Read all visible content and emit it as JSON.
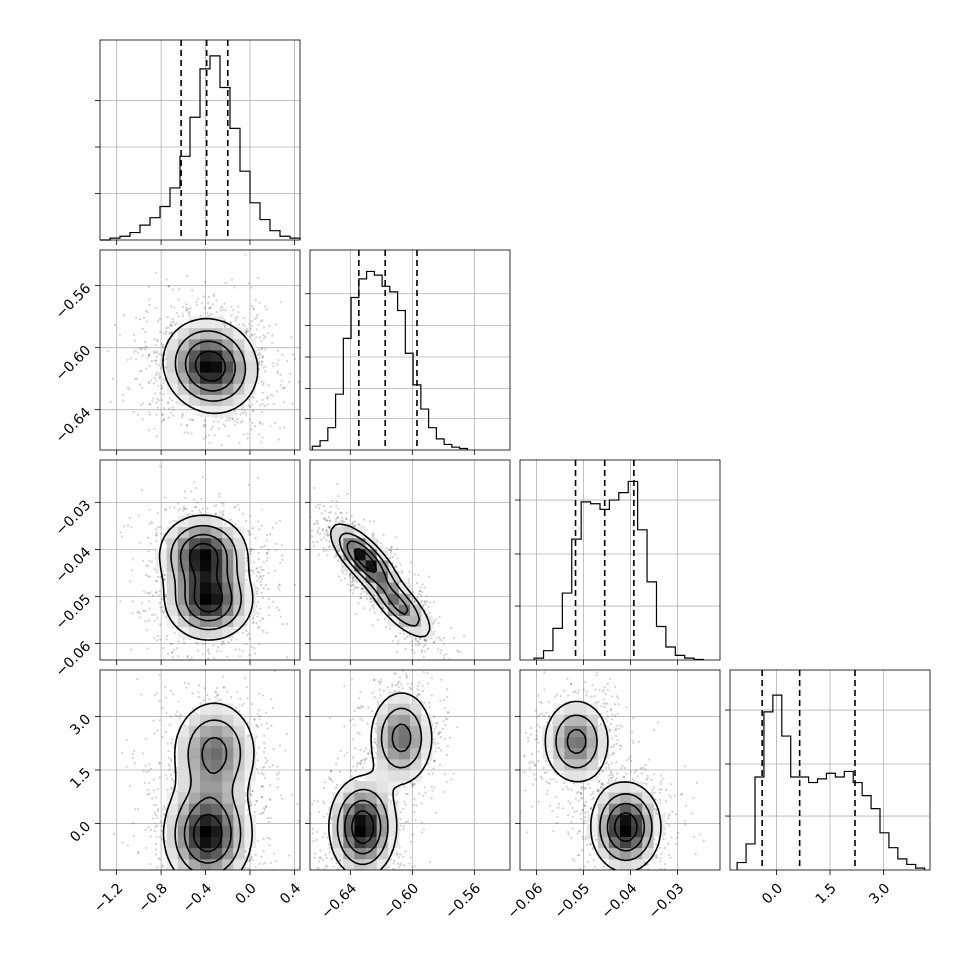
{
  "chart_data": {
    "type": "corner",
    "variables": [
      {
        "id": "p0",
        "range": [
          -1.35,
          0.45
        ],
        "xticks": [
          -1.2,
          -0.8,
          -0.4,
          0.0,
          0.4
        ],
        "xtick_labels": [
          "−1.2",
          "−0.8",
          "−0.4",
          "0.0",
          "0.4"
        ],
        "yticks": [],
        "ytick_labels": []
      },
      {
        "id": "p1",
        "range": [
          -0.666,
          -0.537
        ],
        "xticks": [
          -0.64,
          -0.6,
          -0.56
        ],
        "xtick_labels": [
          "−0.64",
          "−0.60",
          "−0.56"
        ],
        "yticks": [
          -0.56,
          -0.6,
          -0.64
        ],
        "ytick_labels": [
          "−0.56",
          "−0.60",
          "−0.64"
        ]
      },
      {
        "id": "p2",
        "range": [
          -0.0635,
          -0.021
        ],
        "xticks": [
          -0.06,
          -0.05,
          -0.04,
          -0.03
        ],
        "xtick_labels": [
          "−0.06",
          "−0.05",
          "−0.04",
          "−0.03"
        ],
        "yticks": [
          -0.03,
          -0.04,
          -0.05,
          -0.06
        ],
        "ytick_labels": [
          "−0.03",
          "−0.04",
          "−0.05",
          "−0.06"
        ]
      },
      {
        "id": "p3",
        "range": [
          -1.3,
          4.3
        ],
        "xticks": [
          0.0,
          1.5,
          3.0
        ],
        "xtick_labels": [
          "0.0",
          "1.5",
          "3.0"
        ],
        "yticks": [
          3.0,
          1.5,
          0.0
        ],
        "ytick_labels": [
          "3.0",
          "1.5",
          "0.0"
        ]
      }
    ],
    "histograms": [
      {
        "var": "p0",
        "ymax": 1.0,
        "yticks": [
          0.25,
          0.5,
          0.75
        ],
        "quantiles": [
          -0.62,
          -0.39,
          -0.2
        ],
        "bins": [
          [
            -1.35,
            0.0
          ],
          [
            -1.26,
            0.01
          ],
          [
            -1.17,
            0.02
          ],
          [
            -1.08,
            0.04
          ],
          [
            -0.99,
            0.08
          ],
          [
            -0.9,
            0.12
          ],
          [
            -0.81,
            0.18
          ],
          [
            -0.72,
            0.28
          ],
          [
            -0.63,
            0.45
          ],
          [
            -0.54,
            0.66
          ],
          [
            -0.45,
            0.92
          ],
          [
            -0.36,
            0.99
          ],
          [
            -0.27,
            0.82
          ],
          [
            -0.18,
            0.6
          ],
          [
            -0.09,
            0.37
          ],
          [
            0.0,
            0.2
          ],
          [
            0.09,
            0.11
          ],
          [
            0.18,
            0.05
          ],
          [
            0.27,
            0.02
          ],
          [
            0.36,
            0.01
          ]
        ]
      },
      {
        "var": "p1",
        "ymax": 1.0,
        "yticks": [
          0.17,
          0.33,
          0.5,
          0.67,
          0.84
        ],
        "quantiles": [
          -0.6345,
          -0.6175,
          -0.597
        ],
        "bins": [
          [
            -0.6645,
            0.02
          ],
          [
            -0.6595,
            0.05
          ],
          [
            -0.6545,
            0.12
          ],
          [
            -0.6495,
            0.3
          ],
          [
            -0.6445,
            0.6
          ],
          [
            -0.6395,
            0.82
          ],
          [
            -0.6345,
            0.92
          ],
          [
            -0.6295,
            0.96
          ],
          [
            -0.6245,
            0.94
          ],
          [
            -0.6195,
            0.88
          ],
          [
            -0.6145,
            0.85
          ],
          [
            -0.6095,
            0.75
          ],
          [
            -0.6045,
            0.52
          ],
          [
            -0.5995,
            0.35
          ],
          [
            -0.5945,
            0.22
          ],
          [
            -0.5895,
            0.12
          ],
          [
            -0.5845,
            0.06
          ],
          [
            -0.5795,
            0.03
          ],
          [
            -0.5745,
            0.015
          ],
          [
            -0.5695,
            0.008
          ]
        ]
      },
      {
        "var": "p2",
        "ymax": 1.0,
        "yticks": [
          0.29,
          0.57,
          0.86
        ],
        "quantiles": [
          -0.0517,
          -0.0455,
          -0.0393
        ],
        "bins": [
          [
            -0.0605,
            0.01
          ],
          [
            -0.0585,
            0.05
          ],
          [
            -0.0565,
            0.17
          ],
          [
            -0.0545,
            0.36
          ],
          [
            -0.0525,
            0.65
          ],
          [
            -0.0505,
            0.85
          ],
          [
            -0.0485,
            0.84
          ],
          [
            -0.0465,
            0.81
          ],
          [
            -0.0445,
            0.86
          ],
          [
            -0.0425,
            0.9
          ],
          [
            -0.0405,
            0.96
          ],
          [
            -0.0385,
            0.7
          ],
          [
            -0.0365,
            0.42
          ],
          [
            -0.0345,
            0.18
          ],
          [
            -0.0325,
            0.07
          ],
          [
            -0.0305,
            0.025
          ],
          [
            -0.0285,
            0.01
          ],
          [
            -0.0265,
            0.003
          ]
        ]
      },
      {
        "var": "p3",
        "ymax": 1.0,
        "yticks": [
          0.29,
          0.57,
          0.86
        ],
        "quantiles": [
          -0.4,
          0.65,
          2.2
        ],
        "bins": [
          [
            -1.1,
            0.04
          ],
          [
            -0.85,
            0.14
          ],
          [
            -0.6,
            0.5
          ],
          [
            -0.35,
            0.85
          ],
          [
            -0.1,
            0.94
          ],
          [
            0.15,
            0.72
          ],
          [
            0.4,
            0.5
          ],
          [
            0.65,
            0.5
          ],
          [
            0.9,
            0.47
          ],
          [
            1.15,
            0.49
          ],
          [
            1.4,
            0.52
          ],
          [
            1.65,
            0.5
          ],
          [
            1.9,
            0.53
          ],
          [
            2.15,
            0.47
          ],
          [
            2.4,
            0.4
          ],
          [
            2.65,
            0.33
          ],
          [
            2.9,
            0.2
          ],
          [
            3.15,
            0.12
          ],
          [
            3.4,
            0.06
          ],
          [
            3.65,
            0.03
          ],
          [
            3.9,
            0.01
          ]
        ]
      }
    ],
    "joint_panels": [
      {
        "x": "p0",
        "y": "p1",
        "modes": [
          {
            "x": -0.38,
            "y": -0.615,
            "w": 0.6
          },
          {
            "x": -0.32,
            "y": -0.607,
            "w": 0.4
          }
        ],
        "cov": [
          [
            0.045,
            -0.0004
          ],
          [
            -0.0004,
            0.00022
          ]
        ]
      },
      {
        "x": "p0",
        "y": "p2",
        "modes": [
          {
            "x": -0.42,
            "y": -0.041,
            "w": 0.5
          },
          {
            "x": -0.37,
            "y": -0.051,
            "w": 0.5
          }
        ],
        "cov": [
          [
            0.04,
            0.0
          ],
          [
            0.0,
            1.8e-05
          ]
        ]
      },
      {
        "x": "p0",
        "y": "p3",
        "modes": [
          {
            "x": -0.38,
            "y": -0.3,
            "w": 0.6
          },
          {
            "x": -0.32,
            "y": 2.0,
            "w": 0.4
          }
        ],
        "cov": [
          [
            0.04,
            0.0
          ],
          [
            0.0,
            0.6
          ]
        ]
      },
      {
        "x": "p1",
        "y": "p2",
        "modes": [
          {
            "x": -0.631,
            "y": -0.042,
            "w": 0.6
          },
          {
            "x": -0.608,
            "y": -0.052,
            "w": 0.4
          }
        ],
        "cov": [
          [
            0.00012,
            -3e-05
          ],
          [
            -3e-05,
            1.4e-05
          ]
        ]
      },
      {
        "x": "p1",
        "y": "p3",
        "modes": [
          {
            "x": -0.632,
            "y": -0.1,
            "w": 0.6
          },
          {
            "x": -0.607,
            "y": 2.4,
            "w": 0.4
          }
        ],
        "cov": [
          [
            0.00012,
            0.0
          ],
          [
            0.0,
            0.5
          ]
        ]
      },
      {
        "x": "p2",
        "y": "p3",
        "modes": [
          {
            "x": -0.041,
            "y": -0.1,
            "w": 0.6
          },
          {
            "x": -0.0515,
            "y": 2.3,
            "w": 0.4
          }
        ],
        "cov": [
          [
            1.4e-05,
            0.0
          ],
          [
            0.0,
            0.4
          ]
        ]
      }
    ]
  }
}
